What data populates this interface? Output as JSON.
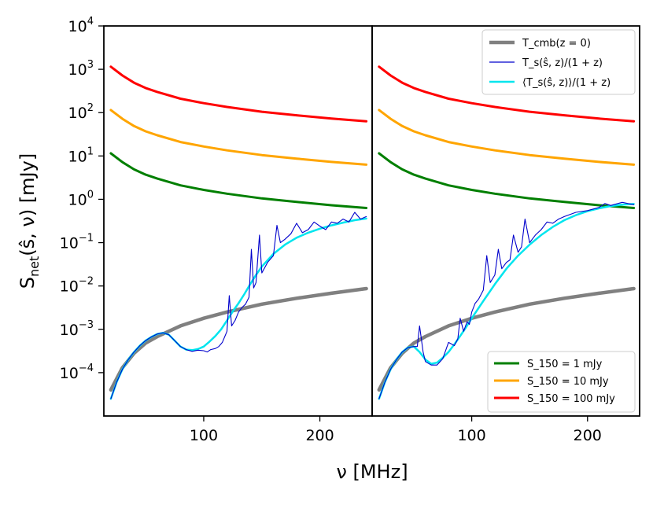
{
  "chart_data": {
    "type": "line",
    "layout": "two side-by-side panels sharing y axis",
    "xlabel": "ν [MHz]",
    "ylabel": "S_net(ŝ, ν) [mJy]",
    "ylabel_main": "S",
    "ylabel_sub": "net",
    "ylabel_rest": "(ŝ, ν) [mJy]",
    "yscale": "log",
    "ylim": [
      1e-05,
      10000
    ],
    "xlim": [
      14,
      245
    ],
    "xticks": [
      100,
      200
    ],
    "xtick_labels": [
      "100",
      "200"
    ],
    "yticks": [
      0.0001,
      0.001,
      0.01,
      0.1,
      1,
      10,
      100,
      1000,
      10000
    ],
    "ytick_exponents": [
      "−4",
      "−3",
      "−2",
      "−1",
      "0",
      "1",
      "2",
      "3",
      "4"
    ],
    "ytick_base": "10",
    "legend_top": {
      "location": "upper-right of right panel",
      "entries": [
        {
          "name": "T_cmb(z=0)",
          "label": "T_cmb(z = 0)",
          "color": "#808080"
        },
        {
          "name": "T_s(ŝ,z)/(1+z)",
          "label": "T_s(ŝ, z)/(1 + z)",
          "color": "#0000cc"
        },
        {
          "name": "<T_s(ŝ,z)>/(1+z)",
          "label": "⟨T_s(ŝ, z)⟩/(1 + z)",
          "color": "#00e5ee"
        }
      ]
    },
    "legend_bottom": {
      "location": "lower-right of right panel",
      "entries": [
        {
          "name": "S_150 = 1 mJy",
          "label": "S_150 = 1 mJy",
          "color": "#007f00"
        },
        {
          "name": "S_150 = 10 mJy",
          "label": "S_150 = 10 mJy",
          "color": "#ffa500"
        },
        {
          "name": "S_150 = 100 mJy",
          "label": "S_150 = 100 mJy",
          "color": "#ff0000"
        }
      ]
    },
    "panels": [
      {
        "id": "left",
        "series": [
          {
            "name": "S_150 = 100 mJy",
            "color": "#ff0000",
            "x": [
              20,
              30,
              40,
              50,
              60,
              80,
              100,
              120,
              150,
              180,
              210,
              240
            ],
            "y": [
              1150,
              720,
              490,
              370,
              300,
              210,
              165,
              135,
              105,
              87,
              73,
              63
            ]
          },
          {
            "name": "S_150 = 10 mJy",
            "color": "#ffa500",
            "x": [
              20,
              30,
              40,
              50,
              60,
              80,
              100,
              120,
              150,
              180,
              210,
              240
            ],
            "y": [
              115,
              72,
              49,
              37,
              30,
              21,
              16.5,
              13.5,
              10.5,
              8.7,
              7.3,
              6.3
            ]
          },
          {
            "name": "S_150 = 1 mJy",
            "color": "#007f00",
            "x": [
              20,
              30,
              40,
              50,
              60,
              80,
              100,
              120,
              150,
              180,
              210,
              240
            ],
            "y": [
              11.5,
              7.2,
              4.9,
              3.7,
              3.0,
              2.1,
              1.65,
              1.35,
              1.05,
              0.87,
              0.73,
              0.63
            ]
          },
          {
            "name": "T_cmb(z=0)",
            "color": "#808080",
            "x": [
              20,
              30,
              40,
              50,
              60,
              80,
              100,
              120,
              150,
              180,
              210,
              240
            ],
            "y": [
              4e-05,
              0.00013,
              0.00028,
              0.00048,
              0.00068,
              0.0012,
              0.0018,
              0.0025,
              0.0038,
              0.0052,
              0.0068,
              0.0087
            ]
          },
          {
            "name": "<T_s(ŝ,z)>/(1+z)",
            "color": "#00e5ee",
            "x": [
              20,
              25,
              30,
              35,
              40,
              45,
              50,
              55,
              60,
              65,
              70,
              75,
              80,
              85,
              90,
              95,
              100,
              105,
              110,
              115,
              120,
              125,
              130,
              135,
              140,
              145,
              150,
              160,
              170,
              180,
              190,
              200,
              210,
              220,
              230,
              240
            ],
            "y": [
              2.5e-05,
              6e-05,
              0.00012,
              0.0002,
              0.0003,
              0.00042,
              0.00055,
              0.00067,
              0.00078,
              0.00083,
              0.00075,
              0.00055,
              0.0004,
              0.00034,
              0.00033,
              0.00035,
              0.0004,
              0.00052,
              0.0007,
              0.001,
              0.0016,
              0.0026,
              0.004,
              0.0065,
              0.011,
              0.018,
              0.028,
              0.055,
              0.09,
              0.13,
              0.17,
              0.21,
              0.25,
              0.29,
              0.33,
              0.36
            ]
          },
          {
            "name": "T_s(ŝ,z)/(1+z)",
            "color": "#0000cc",
            "x": [
              20,
              25,
              30,
              35,
              40,
              45,
              50,
              55,
              60,
              65,
              70,
              75,
              80,
              85,
              90,
              95,
              100,
              103,
              106,
              110,
              113,
              116,
              120,
              122,
              124,
              127,
              130,
              133,
              136,
              139,
              141,
              143,
              145,
              148,
              150,
              155,
              160,
              163,
              166,
              170,
              175,
              180,
              185,
              190,
              195,
              200,
              205,
              210,
              215,
              220,
              225,
              230,
              235,
              240
            ],
            "y": [
              2.5e-05,
              6e-05,
              0.00012,
              0.0002,
              0.0003,
              0.00042,
              0.00055,
              0.00067,
              0.00078,
              0.00083,
              0.00075,
              0.00055,
              0.0004,
              0.00034,
              0.00031,
              0.00033,
              0.00032,
              0.0003,
              0.00034,
              0.00036,
              0.0004,
              0.0005,
              0.0009,
              0.006,
              0.0012,
              0.0016,
              0.0025,
              0.0032,
              0.0038,
              0.0055,
              0.07,
              0.009,
              0.012,
              0.15,
              0.02,
              0.035,
              0.05,
              0.25,
              0.1,
              0.12,
              0.16,
              0.28,
              0.17,
              0.2,
              0.3,
              0.24,
              0.2,
              0.3,
              0.28,
              0.35,
              0.3,
              0.5,
              0.35,
              0.4
            ]
          }
        ]
      },
      {
        "id": "right",
        "series": [
          {
            "name": "S_150 = 100 mJy",
            "color": "#ff0000",
            "x": [
              20,
              30,
              40,
              50,
              60,
              80,
              100,
              120,
              150,
              180,
              210,
              240
            ],
            "y": [
              1150,
              720,
              490,
              370,
              300,
              210,
              165,
              135,
              105,
              87,
              73,
              63
            ]
          },
          {
            "name": "S_150 = 10 mJy",
            "color": "#ffa500",
            "x": [
              20,
              30,
              40,
              50,
              60,
              80,
              100,
              120,
              150,
              180,
              210,
              240
            ],
            "y": [
              115,
              72,
              49,
              37,
              30,
              21,
              16.5,
              13.5,
              10.5,
              8.7,
              7.3,
              6.3
            ]
          },
          {
            "name": "S_150 = 1 mJy",
            "color": "#007f00",
            "x": [
              20,
              30,
              40,
              50,
              60,
              80,
              100,
              120,
              150,
              180,
              210,
              240
            ],
            "y": [
              11.5,
              7.2,
              4.9,
              3.7,
              3.0,
              2.1,
              1.65,
              1.35,
              1.05,
              0.87,
              0.73,
              0.63
            ]
          },
          {
            "name": "T_cmb(z=0)",
            "color": "#808080",
            "x": [
              20,
              30,
              40,
              50,
              60,
              80,
              100,
              120,
              150,
              180,
              210,
              240
            ],
            "y": [
              4e-05,
              0.00013,
              0.00028,
              0.00048,
              0.00068,
              0.0012,
              0.0018,
              0.0025,
              0.0038,
              0.0052,
              0.0068,
              0.0087
            ]
          },
          {
            "name": "<T_s(ŝ,z)>/(1+z)",
            "color": "#00e5ee",
            "x": [
              20,
              25,
              30,
              35,
              40,
              45,
              50,
              55,
              60,
              65,
              70,
              75,
              80,
              85,
              90,
              95,
              100,
              110,
              120,
              130,
              140,
              150,
              160,
              170,
              180,
              190,
              200,
              210,
              220,
              230,
              240
            ],
            "y": [
              2.5e-05,
              6e-05,
              0.00012,
              0.0002,
              0.0003,
              0.00038,
              0.0004,
              0.0003,
              0.0002,
              0.00016,
              0.00017,
              0.00022,
              0.0003,
              0.00045,
              0.0007,
              0.0011,
              0.0018,
              0.0045,
              0.011,
              0.025,
              0.05,
              0.09,
              0.15,
              0.23,
              0.33,
              0.43,
              0.53,
              0.62,
              0.7,
              0.75,
              0.78
            ]
          },
          {
            "name": "T_s(ŝ,z)/(1+z)",
            "color": "#0000cc",
            "x": [
              20,
              25,
              30,
              35,
              40,
              45,
              50,
              53,
              55,
              58,
              60,
              65,
              70,
              75,
              80,
              85,
              88,
              90,
              93,
              96,
              98,
              100,
              103,
              106,
              110,
              113,
              116,
              120,
              123,
              126,
              130,
              133,
              136,
              140,
              143,
              146,
              150,
              155,
              160,
              165,
              170,
              175,
              180,
              190,
              200,
              210,
              215,
              220,
              230,
              240
            ],
            "y": [
              2.5e-05,
              6e-05,
              0.00012,
              0.0002,
              0.0003,
              0.00038,
              0.0004,
              0.0004,
              0.0012,
              0.0003,
              0.00018,
              0.00015,
              0.00015,
              0.00021,
              0.0005,
              0.00042,
              0.0006,
              0.0018,
              0.0009,
              0.0015,
              0.0013,
              0.0025,
              0.004,
              0.005,
              0.008,
              0.05,
              0.012,
              0.018,
              0.07,
              0.025,
              0.035,
              0.04,
              0.15,
              0.06,
              0.08,
              0.35,
              0.1,
              0.15,
              0.2,
              0.3,
              0.28,
              0.35,
              0.4,
              0.5,
              0.55,
              0.65,
              0.8,
              0.72,
              0.85,
              0.75
            ]
          }
        ]
      }
    ]
  }
}
